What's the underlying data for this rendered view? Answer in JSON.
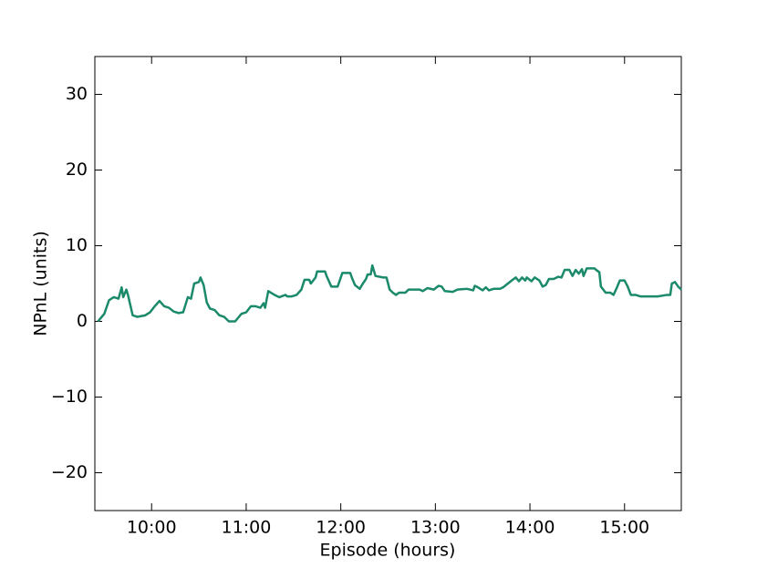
{
  "chart_data": {
    "type": "line",
    "xlabel": "Episode (hours)",
    "ylabel": "NPnL (units)",
    "x": [
      566,
      570,
      573,
      576,
      579,
      581,
      582,
      584,
      585,
      588,
      591,
      596,
      599,
      602,
      605,
      608,
      611,
      614,
      617,
      620,
      623,
      625,
      627,
      630,
      631,
      633,
      635,
      637,
      640,
      643,
      646,
      649,
      653,
      657,
      660,
      663,
      666,
      669,
      671,
      672,
      674,
      678,
      681,
      685,
      686,
      689,
      692,
      695,
      697,
      700,
      701,
      704,
      705,
      710,
      711,
      714,
      718,
      721,
      726,
      727,
      729,
      732,
      734,
      736,
      737,
      739,
      740,
      742,
      747,
      749,
      751,
      753,
      755,
      757,
      761,
      763,
      770,
      772,
      775,
      779,
      782,
      784,
      786,
      791,
      794,
      800,
      804,
      805,
      807,
      810,
      812,
      814,
      817,
      821,
      823,
      826,
      829,
      831,
      833,
      835,
      837,
      838,
      841,
      843,
      846,
      848,
      850,
      852,
      855,
      858,
      860,
      862,
      865,
      867,
      869,
      871,
      873,
      874,
      876,
      878,
      881,
      882,
      884,
      885,
      888,
      891,
      893,
      895,
      897,
      900,
      902,
      904,
      907,
      910,
      921,
      927,
      929,
      930,
      932,
      934,
      936
    ],
    "series": [
      {
        "color": "#1b8a6b",
        "values": [
          0,
          1,
          2.8,
          3.2,
          3.0,
          4.5,
          3.2,
          4.2,
          3.5,
          0.8,
          0.6,
          0.8,
          1.2,
          2.0,
          2.7,
          2.0,
          1.8,
          1.3,
          1.1,
          1.2,
          3.2,
          3.0,
          5.0,
          5.2,
          5.8,
          4.8,
          2.5,
          1.7,
          1.5,
          0.8,
          0.6,
          0,
          0,
          1.0,
          1.2,
          2.0,
          2.0,
          1.8,
          2.4,
          1.8,
          4.0,
          3.5,
          3.2,
          3.5,
          3.3,
          3.3,
          3.5,
          4.2,
          5.5,
          5.5,
          5.0,
          5.8,
          6.6,
          6.6,
          6.0,
          4.6,
          4.6,
          6.4,
          6.4,
          5.8,
          4.8,
          4.3,
          5.0,
          5.6,
          6.2,
          6.2,
          7.4,
          6.0,
          5.8,
          5.8,
          4.2,
          3.8,
          3.5,
          3.8,
          3.8,
          4.2,
          4.2,
          4.0,
          4.4,
          4.2,
          4.7,
          4.6,
          4.0,
          3.9,
          4.2,
          4.3,
          4.1,
          4.7,
          4.5,
          4.1,
          4.5,
          4.1,
          4.3,
          4.3,
          4.5,
          5.0,
          5.5,
          5.8,
          5.3,
          5.8,
          5.4,
          5.8,
          5.3,
          5.8,
          5.4,
          4.6,
          4.8,
          5.6,
          5.6,
          5.9,
          5.8,
          6.8,
          6.8,
          6.0,
          6.8,
          6.3,
          6.9,
          6.0,
          7.0,
          7.0,
          7.0,
          6.8,
          6.5,
          4.6,
          3.8,
          3.8,
          3.5,
          4.4,
          5.4,
          5.4,
          4.6,
          3.5,
          3.5,
          3.3,
          3.3,
          3.5,
          3.5,
          5.0,
          5.2,
          4.6,
          4.2
        ]
      }
    ],
    "xlim": [
      564,
      936
    ],
    "xticks": [
      {
        "value": 600,
        "label": "10:00"
      },
      {
        "value": 660,
        "label": "11:00"
      },
      {
        "value": 720,
        "label": "12:00"
      },
      {
        "value": 780,
        "label": "13:00"
      },
      {
        "value": 840,
        "label": "14:00"
      },
      {
        "value": 900,
        "label": "15:00"
      }
    ],
    "ylim": [
      -25,
      35
    ],
    "yticks": [
      {
        "value": -20,
        "label": "−20"
      },
      {
        "value": -10,
        "label": "−10"
      },
      0,
      10,
      20,
      30
    ],
    "grid": false
  }
}
